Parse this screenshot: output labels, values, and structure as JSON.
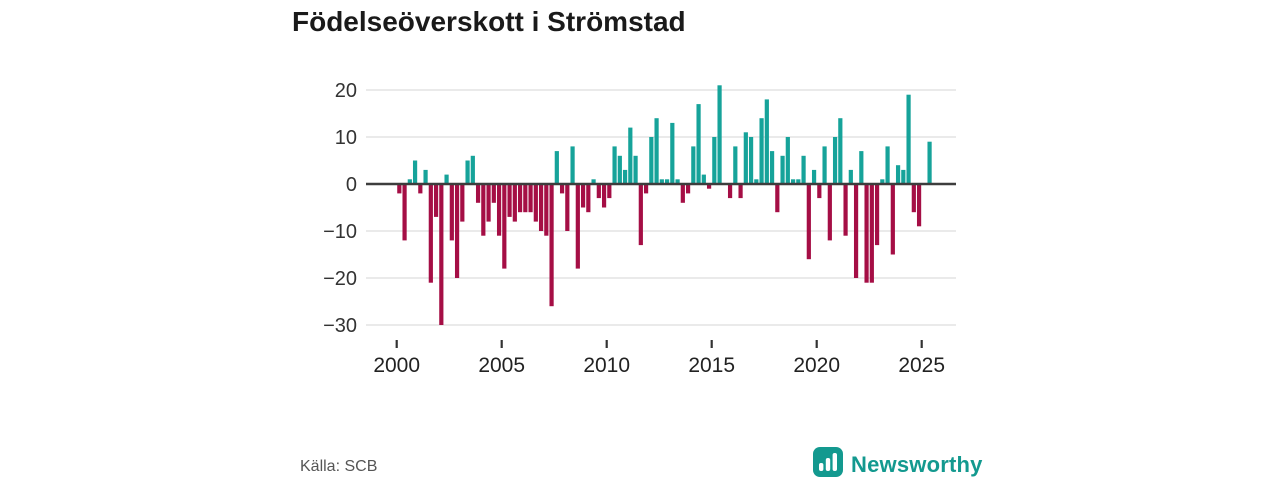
{
  "title": "Födelseöverskott i Strömstad",
  "footer": {
    "source": "Källa: SCB",
    "brand": "Newsworthy"
  },
  "colors": {
    "positive": "#16a39a",
    "negative": "#a50e45",
    "grid": "#e3e3e3",
    "zero_line": "#3d3d3d",
    "axis_text": "#333333",
    "title_text": "#1a1a1a",
    "brand_teal": "#13998f"
  },
  "chart_data": {
    "type": "bar",
    "title": "Födelseöverskott i Strömstad",
    "frequency": "quarterly",
    "start_year": 2000,
    "start_quarter": 1,
    "values": [
      -2,
      -12,
      1,
      5,
      -2,
      3,
      -21,
      -7,
      -30,
      2,
      -12,
      -20,
      -8,
      5,
      6,
      -4,
      -11,
      -8,
      -4,
      -11,
      -18,
      -7,
      -8,
      -6,
      -6,
      -6,
      -8,
      -10,
      -11,
      -26,
      7,
      -2,
      -10,
      8,
      -18,
      -5,
      -6,
      1,
      -3,
      -5,
      -3,
      8,
      6,
      3,
      12,
      6,
      -13,
      -2,
      10,
      14,
      1,
      1,
      13,
      1,
      -4,
      -2,
      8,
      17,
      2,
      -1,
      10,
      21,
      0,
      -3,
      8,
      -3,
      11,
      10,
      1,
      14,
      18,
      7,
      -6,
      6,
      10,
      1,
      1,
      6,
      -16,
      3,
      -3,
      8,
      -12,
      10,
      14,
      -11,
      3,
      -20,
      7,
      -21,
      -21,
      -13,
      1,
      8,
      -15,
      4,
      3,
      19,
      -6,
      -9,
      0,
      9
    ],
    "x_tick_labels": [
      "2000",
      "2005",
      "2010",
      "2015",
      "2020",
      "2025"
    ],
    "x_tick_years": [
      2000,
      2005,
      2010,
      2015,
      2020,
      2025
    ],
    "y_ticks": [
      20,
      10,
      0,
      -10,
      -20,
      -30
    ],
    "y_tick_labels": [
      "20",
      "10",
      "0",
      "−10",
      "−20",
      "−30"
    ],
    "ylim": [
      -32,
      23
    ],
    "grid": "horizontal",
    "zero_line": true,
    "legend": "none"
  }
}
